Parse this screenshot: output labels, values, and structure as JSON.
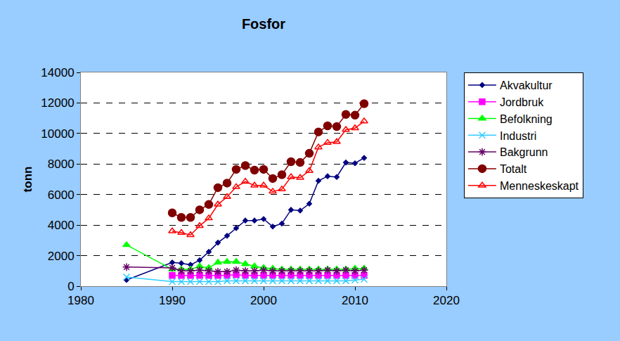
{
  "chart_data": {
    "type": "line",
    "title": "Fosfor",
    "y_label": "tonn",
    "x": [
      1985,
      1990,
      1991,
      1992,
      1993,
      1994,
      1995,
      1996,
      1997,
      1998,
      1999,
      2000,
      2001,
      2002,
      2003,
      2004,
      2005,
      2006,
      2007,
      2008,
      2009,
      2010,
      2011
    ],
    "xlim": [
      1980,
      2020
    ],
    "xticks": [
      1980,
      1990,
      2000,
      2010,
      2020
    ],
    "ylim": [
      0,
      14000
    ],
    "yticks": [
      0,
      2000,
      4000,
      6000,
      8000,
      10000,
      12000,
      14000
    ],
    "grid": true,
    "legend": "right",
    "series": [
      {
        "name": "Akvakultur",
        "color": "#000080",
        "marker": "diamond",
        "values": [
          400,
          1550,
          1500,
          1400,
          1700,
          2250,
          2850,
          3300,
          3800,
          4300,
          4300,
          4400,
          3900,
          4100,
          5000,
          4950,
          5400,
          6900,
          7200,
          7150,
          8100,
          8050,
          8400
        ]
      },
      {
        "name": "Jordbruk",
        "color": "#ff00ff",
        "marker": "square",
        "values": [
          null,
          700,
          700,
          700,
          700,
          700,
          700,
          700,
          750,
          700,
          700,
          700,
          700,
          700,
          700,
          700,
          700,
          700,
          700,
          700,
          700,
          700,
          700
        ]
      },
      {
        "name": "Befolkning",
        "color": "#00ff00",
        "marker": "triangle-up",
        "values": [
          2700,
          1100,
          1100,
          1100,
          1300,
          1200,
          1550,
          1600,
          1600,
          1450,
          1300,
          1200,
          1150,
          1100,
          1100,
          1100,
          1100,
          1100,
          1100,
          1100,
          1100,
          1150,
          1150
        ]
      },
      {
        "name": "Industri",
        "color": "#33ccff",
        "marker": "x",
        "values": [
          600,
          300,
          300,
          300,
          300,
          300,
          300,
          350,
          350,
          350,
          350,
          350,
          350,
          350,
          350,
          350,
          350,
          350,
          350,
          350,
          350,
          400,
          450
        ]
      },
      {
        "name": "Bakgrunn",
        "color": "#660066",
        "marker": "asterisk",
        "values": [
          1250,
          1200,
          1000,
          1000,
          1050,
          1000,
          950,
          950,
          1050,
          1000,
          1000,
          1050,
          1000,
          1000,
          1000,
          1000,
          1000,
          1000,
          1050,
          1000,
          1050,
          1000,
          1050
        ]
      },
      {
        "name": "Totalt",
        "color": "#800000",
        "marker": "circle",
        "values": [
          null,
          4800,
          4500,
          4500,
          5000,
          5350,
          6450,
          6750,
          7650,
          7900,
          7600,
          7650,
          7050,
          7300,
          8150,
          8100,
          8700,
          10100,
          10500,
          10450,
          11250,
          11200,
          11950
        ]
      },
      {
        "name": "Menneskeskapt",
        "color": "#ff0000",
        "marker": "triangle-up-open",
        "values": [
          null,
          3600,
          3500,
          3350,
          3950,
          4450,
          5350,
          5850,
          6500,
          6850,
          6600,
          6600,
          6200,
          6350,
          7150,
          7100,
          7550,
          9100,
          9400,
          9450,
          10250,
          10350,
          10800
        ]
      }
    ]
  }
}
